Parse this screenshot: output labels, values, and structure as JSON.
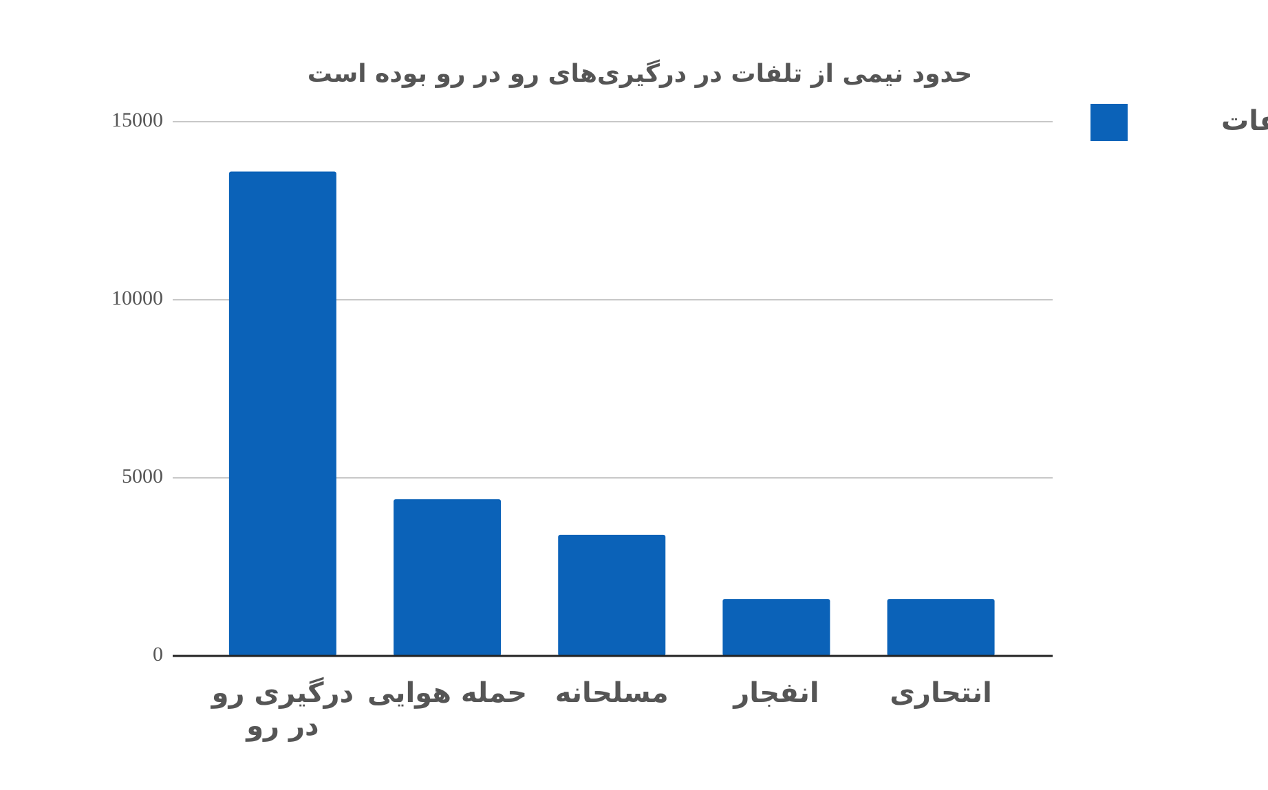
{
  "chart_data": {
    "type": "bar",
    "title": "حدود نیمی از تلفات در درگیری‌های رو در رو بوده است",
    "categories": [
      "درگیری رو در رو",
      "حمله هوایی",
      "مسلحانه",
      "انفجار",
      "انتحاری"
    ],
    "series": [
      {
        "name": "تلفات",
        "color": "#0b62b8",
        "values": [
          13600,
          4400,
          3400,
          1600,
          1600
        ]
      }
    ],
    "ylim": [
      0,
      15000
    ],
    "yticks": [
      0,
      5000,
      10000,
      15000
    ],
    "grid": true,
    "legend": "right"
  }
}
